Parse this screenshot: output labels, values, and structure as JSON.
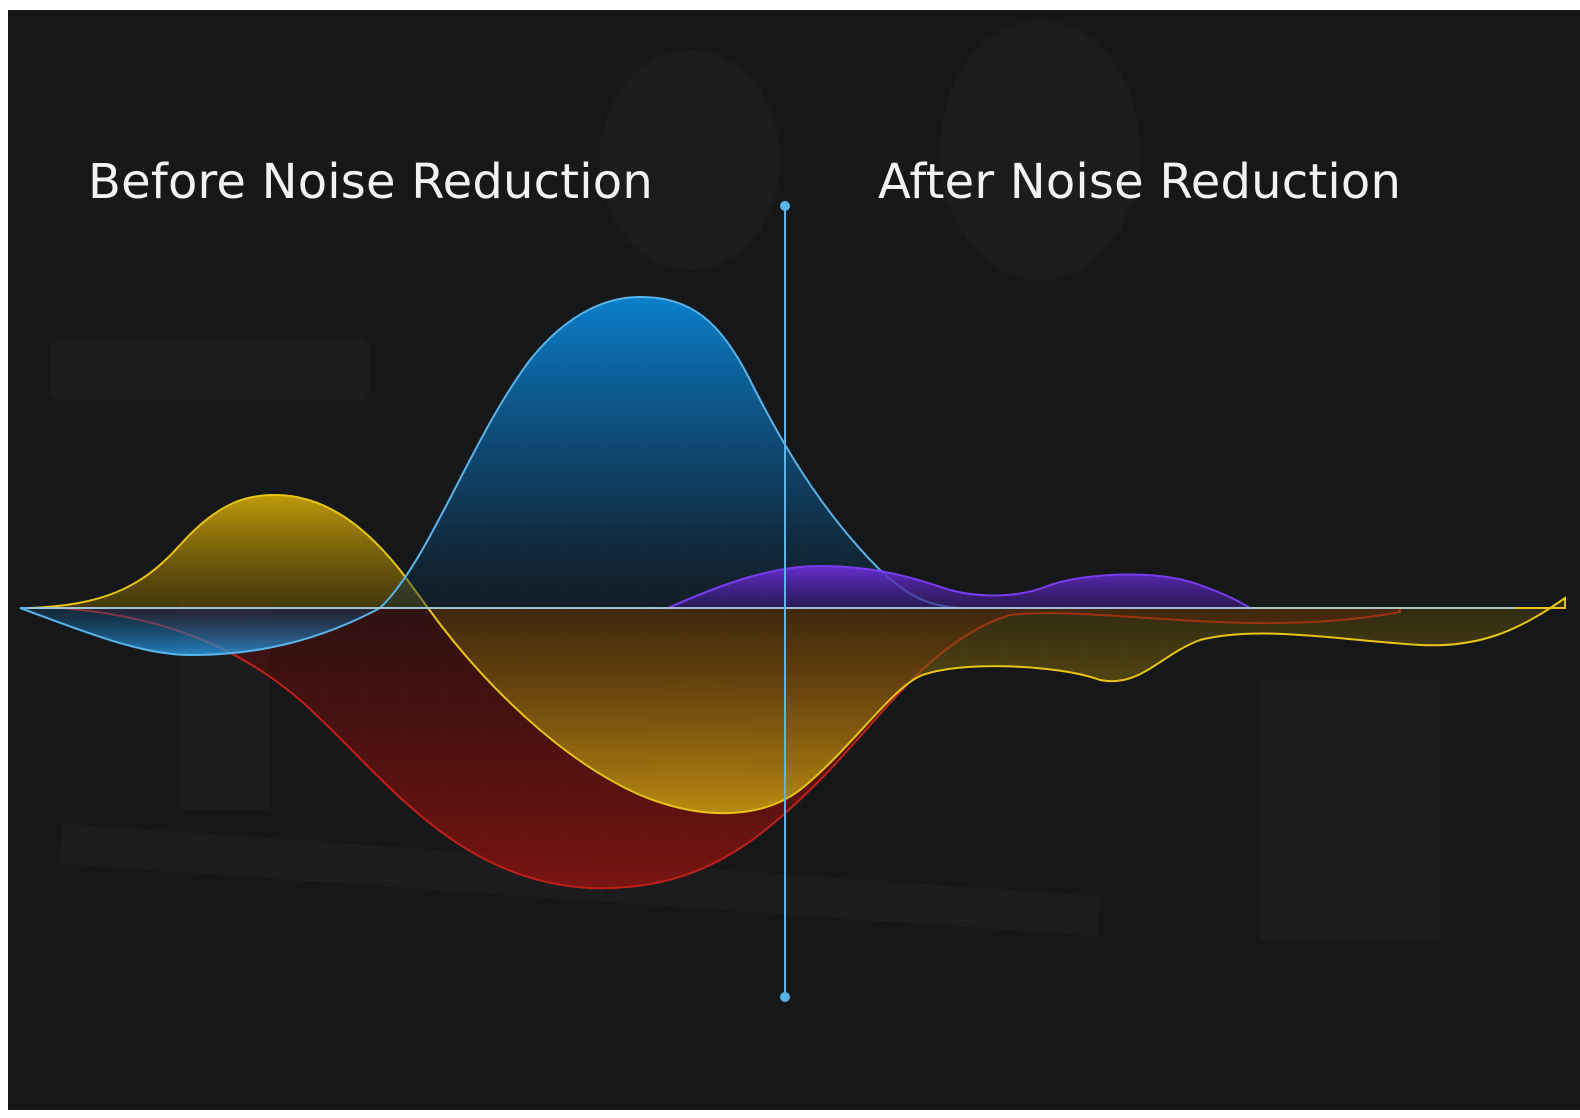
{
  "labels": {
    "before": "Before Noise Reduction",
    "after": "After Noise Reduction"
  },
  "colors": {
    "background": "#161718",
    "blue_wave": "#5ab4ea",
    "yellow_wave": "#e8c417",
    "red_wave": "#c0201a",
    "purple_wave": "#6a2fd8",
    "divider": "#5ab4ea",
    "baseline": "#a9c6d6",
    "title_text": "#f2f2f2"
  },
  "icons": {
    "divider": "split-divider-handle-icon"
  }
}
